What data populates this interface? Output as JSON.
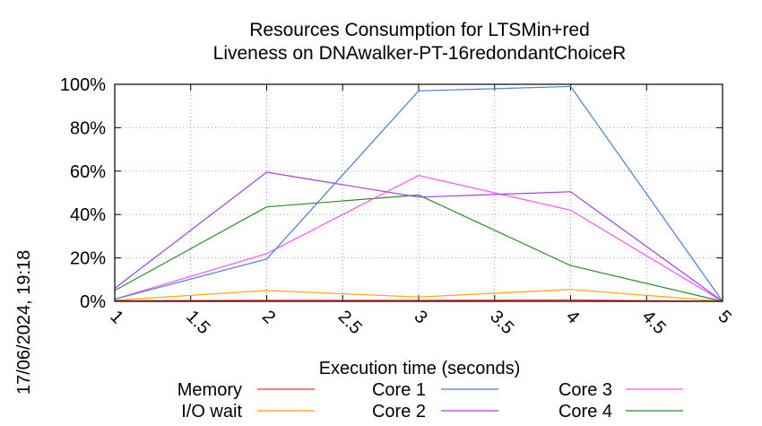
{
  "chart_data": {
    "type": "line",
    "title": [
      "Resources Consumption for LTSMin+red",
      "Liveness on DNAwalker-PT-16redondantChoiceR"
    ],
    "xlabel": "Execution time (seconds)",
    "ylabel": "",
    "x": [
      1,
      2,
      3,
      4,
      5
    ],
    "xlim": [
      1,
      5
    ],
    "ylim": [
      0,
      100
    ],
    "x_ticks": [
      "1",
      "1.5",
      "2",
      "2.5",
      "3",
      "3.5",
      "4",
      "4.5",
      "5"
    ],
    "y_ticks": [
      "0%",
      "20%",
      "40%",
      "60%",
      "80%",
      "100%"
    ],
    "grid": true,
    "legend_position": "bottom",
    "series": [
      {
        "name": "Memory",
        "color": "#ff3030",
        "values": [
          0.3,
          0.5,
          0.5,
          0.6,
          0
        ]
      },
      {
        "name": "I/O wait",
        "color": "#ffa500",
        "values": [
          0.5,
          5,
          2,
          5.5,
          0
        ]
      },
      {
        "name": "Core 1",
        "color": "#4a7fd8",
        "values": [
          1,
          19.5,
          97,
          99,
          0
        ]
      },
      {
        "name": "Core 2",
        "color": "#a040e8",
        "values": [
          6,
          59.5,
          48,
          50.5,
          0
        ]
      },
      {
        "name": "Core 3",
        "color": "#ff50ff",
        "values": [
          1,
          22,
          58,
          42,
          0
        ]
      },
      {
        "name": "Core 4",
        "color": "#2a8a2a",
        "values": [
          5,
          43.5,
          49,
          16.5,
          0
        ]
      }
    ]
  },
  "timestamp": "17/06/2024, 19:18"
}
